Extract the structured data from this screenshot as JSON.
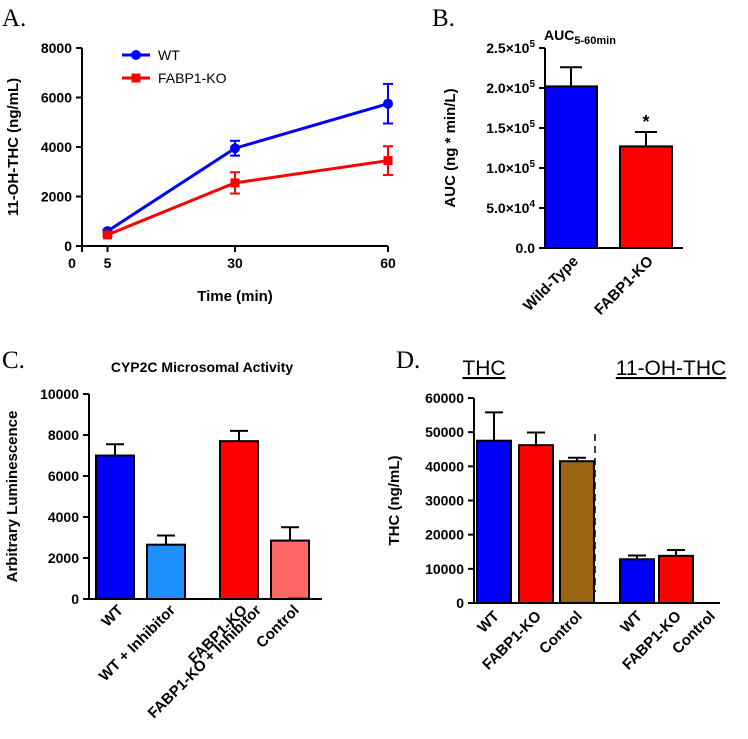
{
  "colors": {
    "wt": "#0000ff",
    "ko": "#ff0000",
    "wt_inhibitor": "#1e90ff",
    "ko_inhibitor": "#ff6666",
    "control": "#996515",
    "axis": "#000000"
  },
  "chart_data": [
    {
      "panel": "A.",
      "type": "line",
      "ylabel": "11-OH-THC (ng/mL)",
      "xlabel": "Time (min)",
      "xlim": [
        0,
        60
      ],
      "ylim": [
        0,
        8000
      ],
      "x_ticks": [
        "0",
        "5",
        "30",
        "60"
      ],
      "y_ticks": [
        "0",
        "2000",
        "4000",
        "6000",
        "8000"
      ],
      "legend_position": "top-left",
      "grid": false,
      "x": [
        5,
        30,
        60
      ],
      "series": [
        {
          "name": "WT",
          "color": "#0000ff",
          "marker": "circle",
          "values": [
            600,
            3950,
            5750
          ],
          "errors": [
            60,
            300,
            800
          ]
        },
        {
          "name": "FABP1-KO",
          "color": "#ff0000",
          "marker": "square",
          "values": [
            450,
            2550,
            3450
          ],
          "errors": [
            50,
            430,
            580
          ]
        }
      ]
    },
    {
      "panel": "B.",
      "type": "bar",
      "title_main": "AUC",
      "title_sub": "5-60min",
      "ylabel": "AUC (ng * min/L)",
      "ylim": [
        0,
        250000
      ],
      "y_ticks": [
        {
          "mant": "0.0",
          "exp": ""
        },
        {
          "mant": "5.0×10",
          "exp": "4"
        },
        {
          "mant": "1.0×10",
          "exp": "5"
        },
        {
          "mant": "1.5×10",
          "exp": "5"
        },
        {
          "mant": "2.0×10",
          "exp": "5"
        },
        {
          "mant": "2.5×10",
          "exp": "5"
        }
      ],
      "categories": [
        "Wild-Type",
        "FABP1-KO"
      ],
      "values": [
        202000,
        127000
      ],
      "errors": [
        24000,
        18000
      ],
      "bar_colors": [
        "#0000ff",
        "#ff0000"
      ],
      "annotations": [
        "",
        "*"
      ]
    },
    {
      "panel": "C.",
      "type": "bar",
      "title": "CYP2C Microsomal Activity",
      "ylabel": "Arbitrary Luminescence",
      "ylim": [
        0,
        10000
      ],
      "y_ticks": [
        "0",
        "2000",
        "4000",
        "6000",
        "8000",
        "10000"
      ],
      "categories": [
        "WT",
        "WT + Inhibitor",
        "FABP1-KO",
        "FABP1-KO + Inhibitor",
        "Control"
      ],
      "values": [
        7000,
        2650,
        7700,
        2850,
        20
      ],
      "errors": [
        550,
        450,
        500,
        650,
        0
      ],
      "bar_colors": [
        "#0000ff",
        "#1e90ff",
        "#ff0000",
        "#ff6666",
        "#ffffff"
      ]
    },
    {
      "panel": "D.",
      "type": "bar",
      "ylabel": "THC (ng/mL)",
      "ylim": [
        0,
        60000
      ],
      "y_ticks": [
        "0",
        "10000",
        "20000",
        "30000",
        "40000",
        "50000",
        "60000"
      ],
      "groups": [
        "THC",
        "11-OH-THC"
      ],
      "categories": [
        "WT",
        "FABP1-KO",
        "Control",
        "WT",
        "FABP1-KO",
        "Control"
      ],
      "values": [
        47500,
        46200,
        41500,
        12800,
        13800,
        0
      ],
      "errors": [
        8300,
        3700,
        1000,
        1100,
        1700,
        0
      ],
      "bar_colors": [
        "#0000ff",
        "#ff0000",
        "#996515",
        "#0000ff",
        "#ff0000",
        "#ffffff"
      ]
    }
  ]
}
